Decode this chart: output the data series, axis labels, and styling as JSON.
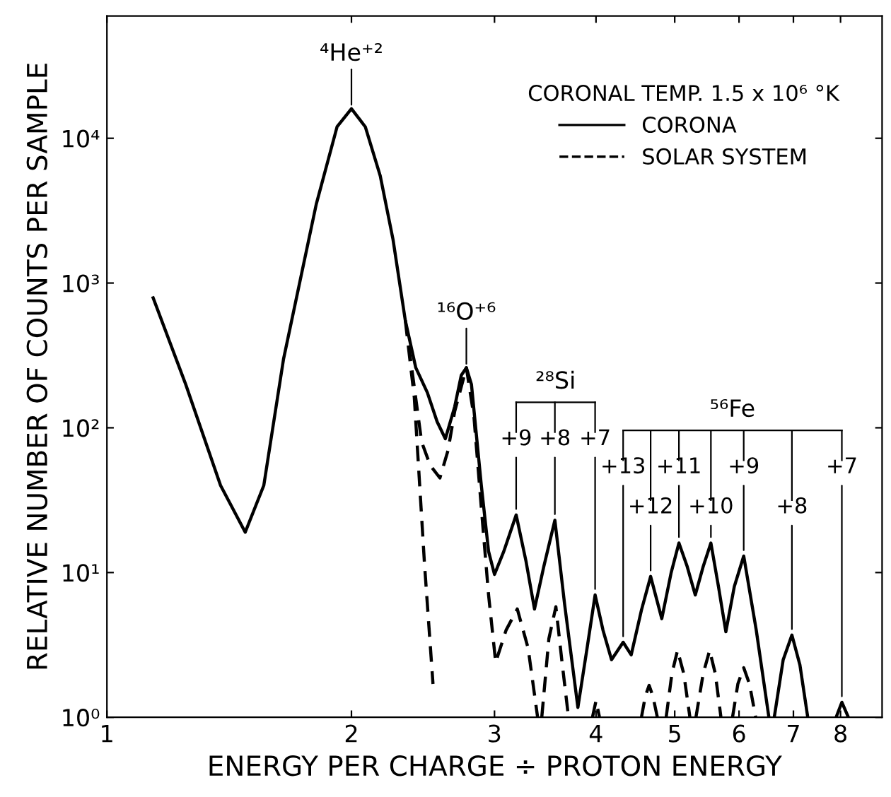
{
  "chart_data": {
    "type": "line",
    "xlabel": "ENERGY PER CHARGE ÷ PROTON ENERGY",
    "ylabel": "RELATIVE NUMBER OF COUNTS PER SAMPLE",
    "log": "xy",
    "xlim": [
      1,
      9
    ],
    "xticks": [
      1,
      2,
      3,
      4,
      5,
      6,
      7,
      8
    ],
    "ylim": [
      1,
      70000
    ],
    "yticks": [
      {
        "value": 1,
        "label": "10⁰"
      },
      {
        "value": 10,
        "label": "10¹"
      },
      {
        "value": 100,
        "label": "10²"
      },
      {
        "value": 1000,
        "label": "10³"
      },
      {
        "value": 10000,
        "label": "10⁴"
      }
    ],
    "grid": false,
    "legend": "top right",
    "legend_title": "CORONAL TEMP. 1.5 x 10⁶ °K",
    "marker": "none",
    "series": [
      {
        "name": "CORONA",
        "color": "#000000",
        "line_style": "solid",
        "x": [
          1.14,
          1.25,
          1.38,
          1.48,
          1.56,
          1.65,
          1.81,
          1.92,
          2.0,
          2.08,
          2.17,
          2.25,
          2.33,
          2.4,
          2.48,
          2.55,
          2.61,
          2.68,
          2.73,
          2.77,
          2.81,
          2.89,
          2.95,
          3.0,
          3.08,
          3.19,
          3.28,
          3.36,
          3.45,
          3.56,
          3.66,
          3.8,
          3.9,
          3.99,
          4.08,
          4.18,
          4.32,
          4.42,
          4.55,
          4.67,
          4.82,
          4.95,
          5.06,
          5.18,
          5.3,
          5.42,
          5.54,
          5.66,
          5.78,
          5.92,
          6.08,
          6.3,
          6.53,
          null,
          6.63,
          6.8,
          6.97,
          7.13,
          7.29,
          null,
          7.9,
          8.03,
          8.18
        ],
        "values": [
          790,
          200,
          40,
          19,
          40,
          300,
          3500,
          12000,
          16000,
          12000,
          5500,
          2000,
          550,
          260,
          175,
          110,
          84,
          140,
          230,
          260,
          200,
          40,
          14,
          9.7,
          14,
          25,
          12,
          5.6,
          11,
          23,
          6,
          1.17,
          3,
          7,
          4,
          2.5,
          3.3,
          2.7,
          5.5,
          9.4,
          4.8,
          10,
          16,
          11,
          7,
          11,
          16,
          8,
          3.9,
          8,
          13,
          4,
          1,
          null,
          1,
          2.5,
          3.7,
          2.3,
          1,
          null,
          1,
          1.27,
          1
        ]
      },
      {
        "name": "SOLAR SYSTEM",
        "color": "#000000",
        "line_style": "dashed",
        "x": [
          2.33,
          2.39,
          2.46,
          2.52,
          null,
          2.33,
          2.44,
          2.5,
          2.57,
          2.63,
          2.68,
          2.77,
          2.83,
          2.89,
          2.95,
          3.01,
          3.1,
          3.2,
          3.3,
          3.39,
          null,
          3.43,
          3.5,
          3.57,
          3.63,
          3.7,
          null,
          3.96,
          4.0,
          4.04,
          null,
          4.55,
          4.6,
          4.65,
          4.7,
          4.76,
          null,
          4.88,
          4.96,
          5.04,
          5.13,
          5.22,
          null,
          5.31,
          5.42,
          5.52,
          5.61,
          5.7,
          null,
          5.89,
          5.98,
          6.08,
          6.18,
          6.29
        ],
        "values": [
          550,
          162,
          11.5,
          1.7,
          null,
          550,
          80,
          55,
          45,
          70,
          130,
          260,
          120,
          28,
          7,
          2.4,
          4,
          5.6,
          3,
          1,
          null,
          1,
          3.5,
          5.8,
          2.5,
          1,
          null,
          1,
          1.3,
          1,
          null,
          1,
          1.4,
          1.66,
          1.4,
          1,
          null,
          1,
          2,
          2.9,
          2,
          1,
          null,
          1,
          2,
          2.9,
          2,
          1,
          null,
          1,
          1.7,
          2.2,
          1.7,
          1
        ]
      }
    ],
    "annotations": [
      {
        "text": "⁴He⁺²",
        "x": 2.0,
        "y": 16000
      },
      {
        "text": "¹⁶O⁺⁶",
        "x": 2.77,
        "y": 260
      },
      "²⁸Si",
      {
        "text": "+9",
        "x": 3.19,
        "y": 25
      },
      {
        "text": "+8",
        "x": 3.56,
        "y": 23
      },
      {
        "text": "+7",
        "x": 3.99,
        "y": 7
      },
      "⁵⁶Fe",
      {
        "text": "+13",
        "x": 4.32,
        "y": 3.3
      },
      {
        "text": "+12",
        "x": 4.67,
        "y": 9.4
      },
      {
        "text": "+11",
        "x": 5.06,
        "y": 16
      },
      {
        "text": "+10",
        "x": 5.54,
        "y": 16
      },
      {
        "text": "+9",
        "x": 6.08,
        "y": 13
      },
      {
        "text": "+8",
        "x": 6.97,
        "y": 3.7
      },
      {
        "text": "+7",
        "x": 8.03,
        "y": 1.27
      }
    ]
  }
}
